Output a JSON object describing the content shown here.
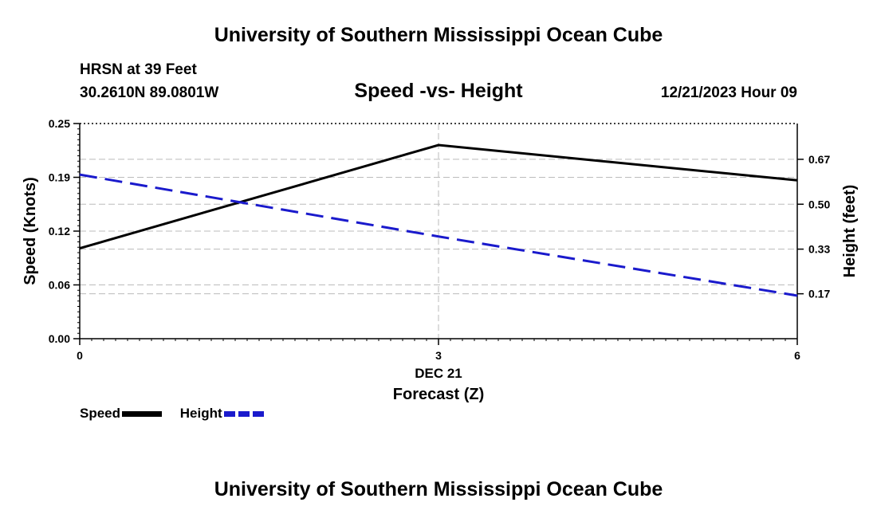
{
  "header": {
    "title": "University of Southern Mississippi Ocean Cube",
    "station": "HRSN at 39 Feet",
    "coords": "30.2610N  89.0801W",
    "subtitle": "Speed -vs- Height",
    "datetime": "12/21/2023 Hour 09"
  },
  "footer": {
    "title": "University of Southern Mississippi Ocean Cube"
  },
  "legend": {
    "speed_label": "Speed",
    "height_label": "Height"
  },
  "colors": {
    "speed": "#000000",
    "height": "#1a1acc",
    "grid": "#bbbbbb"
  },
  "chart_data": {
    "type": "line",
    "x": [
      0,
      3,
      6
    ],
    "x_tick_labels": [
      "0",
      "3",
      "6"
    ],
    "x_date_label": "DEC 21",
    "xlabel": "Forecast (Z)",
    "xlim": [
      0,
      6
    ],
    "series": [
      {
        "name": "Speed",
        "axis": "left",
        "style": "solid",
        "values": [
          0.105,
          0.225,
          0.184
        ]
      },
      {
        "name": "Height",
        "axis": "right",
        "style": "dashed",
        "values": [
          0.61,
          0.38,
          0.16
        ]
      }
    ],
    "left_axis": {
      "label": "Speed (Knots)",
      "ylim": [
        0,
        0.25
      ],
      "ticks": [
        0.0,
        0.0625,
        0.125,
        0.1875,
        0.25
      ],
      "tick_labels": [
        "0.00",
        "0.06",
        "0.12",
        "0.19",
        "0.25"
      ]
    },
    "right_axis": {
      "label": "Height (feet)",
      "ylim": [
        0,
        0.8
      ],
      "ticks": [
        0.167,
        0.333,
        0.5,
        0.667
      ],
      "tick_labels": [
        "0.17",
        "0.33",
        "0.50",
        "0.67"
      ]
    },
    "grid": true
  }
}
